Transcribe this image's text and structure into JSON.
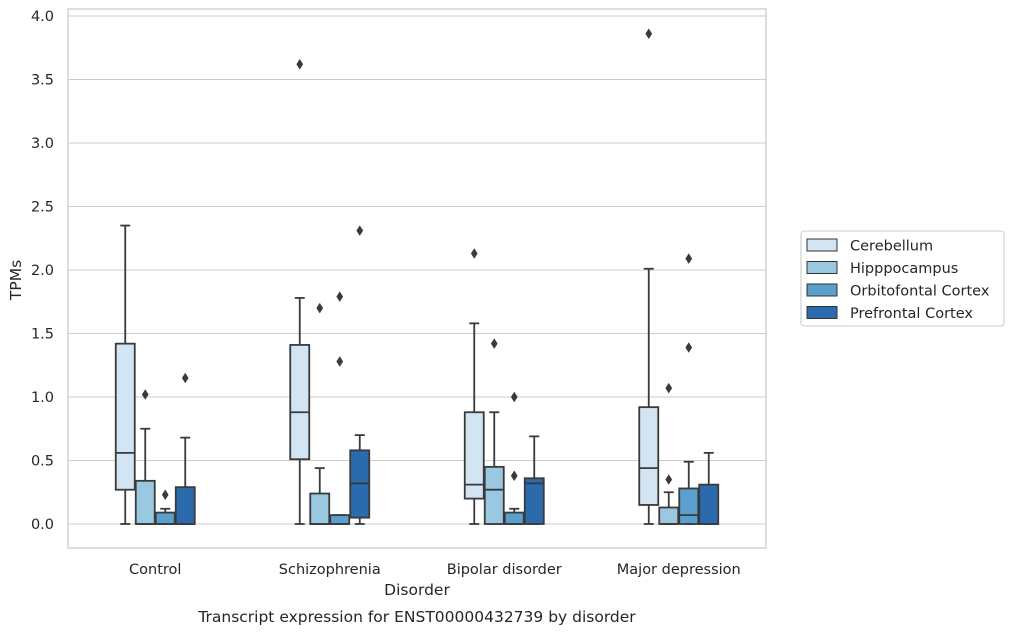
{
  "chart_data": {
    "type": "box",
    "title": "",
    "xlabel": "Disorder",
    "ylabel": "TPMs",
    "caption": "Transcript expression for ENST00000432739 by disorder",
    "categories": [
      "Control",
      "Schizophrenia",
      "Bipolar disorder",
      "Major depression"
    ],
    "ylim": [
      -0.18,
      4.05
    ],
    "yticks": [
      0.0,
      0.5,
      1.0,
      1.5,
      2.0,
      2.5,
      3.0,
      3.5,
      4.0
    ],
    "ytick_labels": [
      "0.0",
      "0.5",
      "1.0",
      "1.5",
      "2.0",
      "2.5",
      "3.0",
      "3.5",
      "4.0"
    ],
    "grid": true,
    "legend_position": "outside-right",
    "series": [
      {
        "name": "Cerebellum",
        "color": "#d3e4f3",
        "boxes": [
          {
            "whisker_low": 0.0,
            "q1": 0.27,
            "median": 0.56,
            "q3": 1.42,
            "whisker_high": 2.35,
            "outliers": []
          },
          {
            "whisker_low": 0.0,
            "q1": 0.51,
            "median": 0.88,
            "q3": 1.41,
            "whisker_high": 1.78,
            "outliers": [
              3.62
            ]
          },
          {
            "whisker_low": 0.0,
            "q1": 0.2,
            "median": 0.31,
            "q3": 0.88,
            "whisker_high": 1.58,
            "outliers": [
              2.13
            ]
          },
          {
            "whisker_low": 0.0,
            "q1": 0.15,
            "median": 0.44,
            "q3": 0.92,
            "whisker_high": 2.01,
            "outliers": [
              3.86
            ]
          }
        ]
      },
      {
        "name": "Hipppocampus",
        "color": "#9ac8e0",
        "boxes": [
          {
            "whisker_low": 0.0,
            "q1": 0.0,
            "median": 0.0,
            "q3": 0.34,
            "whisker_high": 0.75,
            "outliers": [
              1.02
            ]
          },
          {
            "whisker_low": 0.0,
            "q1": 0.0,
            "median": 0.0,
            "q3": 0.24,
            "whisker_high": 0.44,
            "outliers": [
              1.7
            ]
          },
          {
            "whisker_low": 0.0,
            "q1": 0.0,
            "median": 0.27,
            "q3": 0.45,
            "whisker_high": 0.88,
            "outliers": [
              1.42
            ]
          },
          {
            "whisker_low": 0.0,
            "q1": 0.0,
            "median": 0.0,
            "q3": 0.13,
            "whisker_high": 0.25,
            "outliers": [
              0.35,
              1.07
            ]
          }
        ]
      },
      {
        "name": "Orbitofontal Cortex",
        "color": "#5a9fcd",
        "boxes": [
          {
            "whisker_low": 0.0,
            "q1": 0.0,
            "median": 0.0,
            "q3": 0.09,
            "whisker_high": 0.12,
            "outliers": [
              0.23
            ]
          },
          {
            "whisker_low": 0.0,
            "q1": 0.0,
            "median": 0.0,
            "q3": 0.07,
            "whisker_high": 0.07,
            "outliers": [
              1.28,
              1.79
            ]
          },
          {
            "whisker_low": 0.0,
            "q1": 0.0,
            "median": 0.0,
            "q3": 0.09,
            "whisker_high": 0.12,
            "outliers": [
              0.38,
              1.0
            ]
          },
          {
            "whisker_low": 0.0,
            "q1": 0.0,
            "median": 0.07,
            "q3": 0.28,
            "whisker_high": 0.49,
            "outliers": [
              1.39,
              2.09
            ]
          }
        ]
      },
      {
        "name": "Prefrontal Cortex",
        "color": "#2b6aad",
        "boxes": [
          {
            "whisker_low": 0.0,
            "q1": 0.0,
            "median": 0.0,
            "q3": 0.29,
            "whisker_high": 0.68,
            "outliers": [
              1.15
            ]
          },
          {
            "whisker_low": 0.0,
            "q1": 0.05,
            "median": 0.32,
            "q3": 0.58,
            "whisker_high": 0.7,
            "outliers": [
              2.31
            ]
          },
          {
            "whisker_low": 0.0,
            "q1": 0.0,
            "median": 0.32,
            "q3": 0.36,
            "whisker_high": 0.69,
            "outliers": []
          },
          {
            "whisker_low": 0.0,
            "q1": 0.0,
            "median": 0.0,
            "q3": 0.31,
            "whisker_high": 0.56,
            "outliers": []
          }
        ]
      }
    ]
  }
}
